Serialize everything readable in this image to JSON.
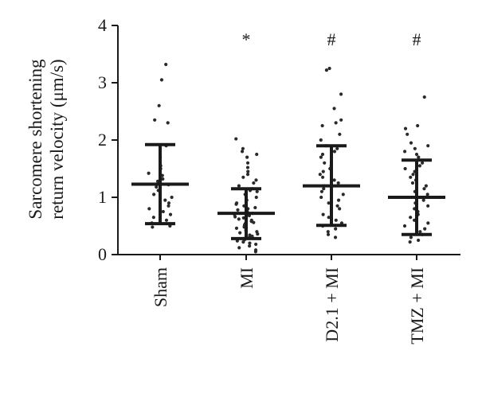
{
  "chart_data": {
    "type": "scatter",
    "ylabel_lines": [
      "Sarcomere shortening",
      "return velocity (μm/s)"
    ],
    "ylim": [
      0,
      4
    ],
    "yticks": [
      "0",
      "1",
      "2",
      "3",
      "4"
    ],
    "categories": [
      "Sham",
      "MI",
      "D2.1 + MI",
      "TMZ + MI"
    ],
    "annotations": [
      "",
      "*",
      "#",
      "#"
    ],
    "mean": [
      1.23,
      0.72,
      1.2,
      1.0
    ],
    "sd_upper": [
      1.92,
      1.15,
      1.9,
      1.65
    ],
    "sd_lower": [
      0.54,
      0.28,
      0.51,
      0.35
    ],
    "points": [
      [
        3.32,
        3.05,
        2.6,
        2.35,
        2.3,
        1.9,
        1.7,
        1.55,
        1.5,
        1.42,
        1.38,
        1.32,
        1.28,
        1.22,
        1.18,
        1.12,
        1.05,
        1.0,
        0.95,
        0.9,
        0.85,
        0.8,
        0.75,
        0.7,
        0.65,
        0.6,
        0.55,
        0.5,
        0.48
      ],
      [
        2.02,
        1.85,
        1.8,
        1.75,
        1.7,
        1.6,
        1.52,
        1.45,
        1.4,
        1.35,
        1.3,
        1.25,
        1.2,
        1.15,
        1.12,
        1.1,
        1.05,
        1.0,
        0.98,
        0.95,
        0.92,
        0.9,
        0.88,
        0.85,
        0.82,
        0.8,
        0.78,
        0.75,
        0.72,
        0.7,
        0.68,
        0.66,
        0.64,
        0.62,
        0.6,
        0.58,
        0.56,
        0.54,
        0.52,
        0.5,
        0.48,
        0.46,
        0.44,
        0.42,
        0.4,
        0.38,
        0.36,
        0.34,
        0.32,
        0.3,
        0.28,
        0.26,
        0.24,
        0.22,
        0.2,
        0.18,
        0.15,
        0.12,
        0.08,
        0.05
      ],
      [
        3.25,
        3.22,
        2.8,
        2.55,
        2.35,
        2.3,
        2.25,
        2.1,
        2.0,
        1.9,
        1.85,
        1.8,
        1.75,
        1.7,
        1.6,
        1.55,
        1.5,
        1.45,
        1.4,
        1.35,
        1.3,
        1.25,
        1.2,
        1.15,
        1.1,
        1.05,
        1.0,
        0.95,
        0.9,
        0.85,
        0.8,
        0.75,
        0.7,
        0.65,
        0.6,
        0.55,
        0.5,
        0.45,
        0.4,
        0.35,
        0.3
      ],
      [
        2.75,
        2.25,
        2.2,
        2.1,
        1.95,
        1.9,
        1.85,
        1.8,
        1.75,
        1.7,
        1.6,
        1.55,
        1.5,
        1.45,
        1.4,
        1.35,
        1.3,
        1.25,
        1.2,
        1.15,
        1.1,
        1.05,
        1.0,
        0.95,
        0.9,
        0.85,
        0.8,
        0.75,
        0.7,
        0.65,
        0.6,
        0.55,
        0.5,
        0.45,
        0.4,
        0.35,
        0.3,
        0.25,
        0.22
      ]
    ],
    "colors": {
      "ink": "#1a1a1a",
      "points": "#2a2a2a"
    },
    "grid": false,
    "legend": "none"
  }
}
